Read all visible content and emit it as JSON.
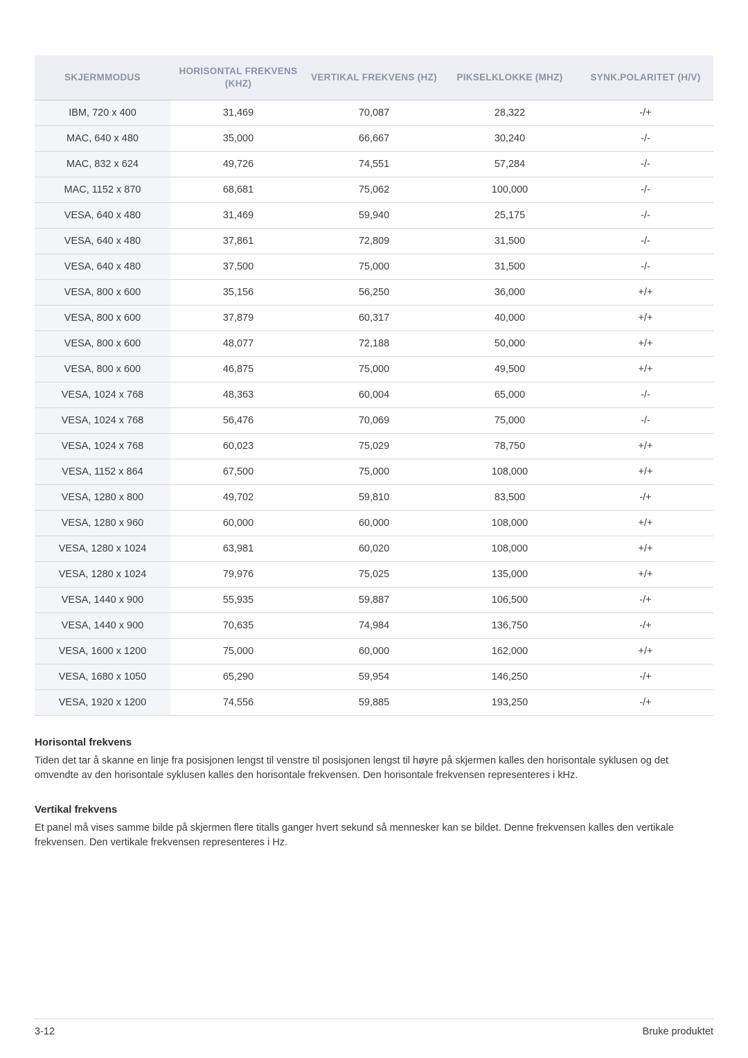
{
  "table": {
    "columns": [
      "SKJERMMODUS",
      "HORISONTAL FREKVENS (KHZ)",
      "VERTIKAL FREKVENS (HZ)",
      "PIKSELKLOKKE (MHZ)",
      "SYNK.POLARITET (H/V)"
    ],
    "column_widths": [
      "20%",
      "20%",
      "20%",
      "20%",
      "20%"
    ],
    "header_bg": "#eceff4",
    "header_color": "#8b93a8",
    "header_fontsize": 13.5,
    "cell_fontsize": 14.5,
    "border_color": "#d7d7d7",
    "firstcol_bg": "#f4f5f8",
    "rows": [
      [
        "IBM, 720 x 400",
        "31,469",
        "70,087",
        "28,322",
        "-/+"
      ],
      [
        "MAC, 640 x 480",
        "35,000",
        "66,667",
        "30,240",
        "-/-"
      ],
      [
        "MAC, 832 x 624",
        "49,726",
        "74,551",
        "57,284",
        "-/-"
      ],
      [
        "MAC, 1152 x 870",
        "68,681",
        "75,062",
        "100,000",
        "-/-"
      ],
      [
        "VESA, 640 x 480",
        "31,469",
        "59,940",
        "25,175",
        "-/-"
      ],
      [
        "VESA, 640 x 480",
        "37,861",
        "72,809",
        "31,500",
        "-/-"
      ],
      [
        "VESA, 640 x 480",
        "37,500",
        "75,000",
        "31,500",
        "-/-"
      ],
      [
        "VESA, 800 x 600",
        "35,156",
        "56,250",
        "36,000",
        "+/+"
      ],
      [
        "VESA, 800 x 600",
        "37,879",
        "60,317",
        "40,000",
        "+/+"
      ],
      [
        "VESA, 800 x 600",
        "48,077",
        "72,188",
        "50,000",
        "+/+"
      ],
      [
        "VESA, 800 x 600",
        "46,875",
        "75,000",
        "49,500",
        "+/+"
      ],
      [
        "VESA, 1024 x 768",
        "48,363",
        "60,004",
        "65,000",
        "-/-"
      ],
      [
        "VESA, 1024 x 768",
        "56,476",
        "70,069",
        "75,000",
        "-/-"
      ],
      [
        "VESA, 1024 x 768",
        "60,023",
        "75,029",
        "78,750",
        "+/+"
      ],
      [
        "VESA, 1152 x 864",
        "67,500",
        "75,000",
        "108,000",
        "+/+"
      ],
      [
        "VESA, 1280 x 800",
        "49,702",
        "59,810",
        "83,500",
        "-/+"
      ],
      [
        "VESA, 1280 x 960",
        "60,000",
        "60,000",
        "108,000",
        "+/+"
      ],
      [
        "VESA, 1280 x 1024",
        "63,981",
        "60,020",
        "108,000",
        "+/+"
      ],
      [
        "VESA, 1280 x 1024",
        "79,976",
        "75,025",
        "135,000",
        "+/+"
      ],
      [
        "VESA, 1440 x 900",
        "55,935",
        "59,887",
        "106,500",
        "-/+"
      ],
      [
        "VESA, 1440 x 900",
        "70,635",
        "74,984",
        "136,750",
        "-/+"
      ],
      [
        "VESA, 1600 x 1200",
        "75,000",
        "60,000",
        "162,000",
        "+/+"
      ],
      [
        "VESA, 1680 x 1050",
        "65,290",
        "59,954",
        "146,250",
        "-/+"
      ],
      [
        "VESA, 1920 x 1200",
        "74,556",
        "59,885",
        "193,250",
        "-/+"
      ]
    ]
  },
  "sections": {
    "h_title": "Horisontal frekvens",
    "h_body": "Tiden det tar å skanne en linje fra posisjonen lengst til venstre til posisjonen lengst til høyre på skjermen kalles den horisontale syklusen og det omvendte av den horisontale syklusen kalles den horisontale frekvensen. Den horisontale frekvensen representeres i kHz.",
    "v_title": "Vertikal frekvens",
    "v_body": "Et panel må vises samme bilde på skjermen flere titalls ganger hvert sekund så mennesker kan se bildet. Denne frekvensen kalles den vertikale frekvensen. Den vertikale frekvensen representeres i Hz."
  },
  "footer": {
    "left": "3-12",
    "right": "Bruke produktet"
  }
}
